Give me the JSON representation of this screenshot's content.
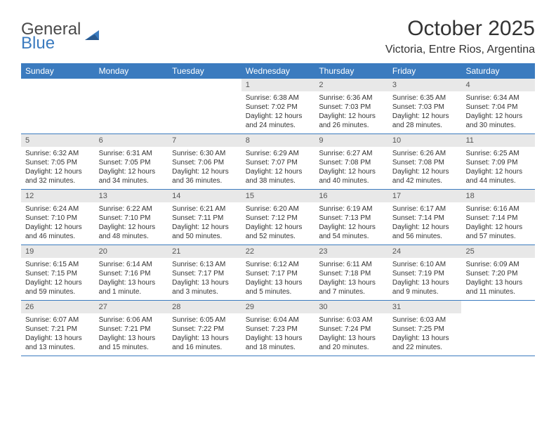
{
  "colors": {
    "header_bg": "#3b7bbf",
    "header_text": "#ffffff",
    "daynum_bg": "#e8e8e8",
    "daynum_text": "#555555",
    "body_text": "#333333",
    "border": "#3b7bbf",
    "logo_gray": "#4a4a4a",
    "logo_blue": "#3b7bbf",
    "page_bg": "#ffffff"
  },
  "logo": {
    "line1": "General",
    "line2": "Blue"
  },
  "title": "October 2025",
  "location": "Victoria, Entre Rios, Argentina",
  "day_headers": [
    "Sunday",
    "Monday",
    "Tuesday",
    "Wednesday",
    "Thursday",
    "Friday",
    "Saturday"
  ],
  "weeks": [
    [
      {
        "empty": true
      },
      {
        "empty": true
      },
      {
        "empty": true
      },
      {
        "num": "1",
        "sunrise": "Sunrise: 6:38 AM",
        "sunset": "Sunset: 7:02 PM",
        "daylight": "Daylight: 12 hours and 24 minutes."
      },
      {
        "num": "2",
        "sunrise": "Sunrise: 6:36 AM",
        "sunset": "Sunset: 7:03 PM",
        "daylight": "Daylight: 12 hours and 26 minutes."
      },
      {
        "num": "3",
        "sunrise": "Sunrise: 6:35 AM",
        "sunset": "Sunset: 7:03 PM",
        "daylight": "Daylight: 12 hours and 28 minutes."
      },
      {
        "num": "4",
        "sunrise": "Sunrise: 6:34 AM",
        "sunset": "Sunset: 7:04 PM",
        "daylight": "Daylight: 12 hours and 30 minutes."
      }
    ],
    [
      {
        "num": "5",
        "sunrise": "Sunrise: 6:32 AM",
        "sunset": "Sunset: 7:05 PM",
        "daylight": "Daylight: 12 hours and 32 minutes."
      },
      {
        "num": "6",
        "sunrise": "Sunrise: 6:31 AM",
        "sunset": "Sunset: 7:05 PM",
        "daylight": "Daylight: 12 hours and 34 minutes."
      },
      {
        "num": "7",
        "sunrise": "Sunrise: 6:30 AM",
        "sunset": "Sunset: 7:06 PM",
        "daylight": "Daylight: 12 hours and 36 minutes."
      },
      {
        "num": "8",
        "sunrise": "Sunrise: 6:29 AM",
        "sunset": "Sunset: 7:07 PM",
        "daylight": "Daylight: 12 hours and 38 minutes."
      },
      {
        "num": "9",
        "sunrise": "Sunrise: 6:27 AM",
        "sunset": "Sunset: 7:08 PM",
        "daylight": "Daylight: 12 hours and 40 minutes."
      },
      {
        "num": "10",
        "sunrise": "Sunrise: 6:26 AM",
        "sunset": "Sunset: 7:08 PM",
        "daylight": "Daylight: 12 hours and 42 minutes."
      },
      {
        "num": "11",
        "sunrise": "Sunrise: 6:25 AM",
        "sunset": "Sunset: 7:09 PM",
        "daylight": "Daylight: 12 hours and 44 minutes."
      }
    ],
    [
      {
        "num": "12",
        "sunrise": "Sunrise: 6:24 AM",
        "sunset": "Sunset: 7:10 PM",
        "daylight": "Daylight: 12 hours and 46 minutes."
      },
      {
        "num": "13",
        "sunrise": "Sunrise: 6:22 AM",
        "sunset": "Sunset: 7:10 PM",
        "daylight": "Daylight: 12 hours and 48 minutes."
      },
      {
        "num": "14",
        "sunrise": "Sunrise: 6:21 AM",
        "sunset": "Sunset: 7:11 PM",
        "daylight": "Daylight: 12 hours and 50 minutes."
      },
      {
        "num": "15",
        "sunrise": "Sunrise: 6:20 AM",
        "sunset": "Sunset: 7:12 PM",
        "daylight": "Daylight: 12 hours and 52 minutes."
      },
      {
        "num": "16",
        "sunrise": "Sunrise: 6:19 AM",
        "sunset": "Sunset: 7:13 PM",
        "daylight": "Daylight: 12 hours and 54 minutes."
      },
      {
        "num": "17",
        "sunrise": "Sunrise: 6:17 AM",
        "sunset": "Sunset: 7:14 PM",
        "daylight": "Daylight: 12 hours and 56 minutes."
      },
      {
        "num": "18",
        "sunrise": "Sunrise: 6:16 AM",
        "sunset": "Sunset: 7:14 PM",
        "daylight": "Daylight: 12 hours and 57 minutes."
      }
    ],
    [
      {
        "num": "19",
        "sunrise": "Sunrise: 6:15 AM",
        "sunset": "Sunset: 7:15 PM",
        "daylight": "Daylight: 12 hours and 59 minutes."
      },
      {
        "num": "20",
        "sunrise": "Sunrise: 6:14 AM",
        "sunset": "Sunset: 7:16 PM",
        "daylight": "Daylight: 13 hours and 1 minute."
      },
      {
        "num": "21",
        "sunrise": "Sunrise: 6:13 AM",
        "sunset": "Sunset: 7:17 PM",
        "daylight": "Daylight: 13 hours and 3 minutes."
      },
      {
        "num": "22",
        "sunrise": "Sunrise: 6:12 AM",
        "sunset": "Sunset: 7:17 PM",
        "daylight": "Daylight: 13 hours and 5 minutes."
      },
      {
        "num": "23",
        "sunrise": "Sunrise: 6:11 AM",
        "sunset": "Sunset: 7:18 PM",
        "daylight": "Daylight: 13 hours and 7 minutes."
      },
      {
        "num": "24",
        "sunrise": "Sunrise: 6:10 AM",
        "sunset": "Sunset: 7:19 PM",
        "daylight": "Daylight: 13 hours and 9 minutes."
      },
      {
        "num": "25",
        "sunrise": "Sunrise: 6:09 AM",
        "sunset": "Sunset: 7:20 PM",
        "daylight": "Daylight: 13 hours and 11 minutes."
      }
    ],
    [
      {
        "num": "26",
        "sunrise": "Sunrise: 6:07 AM",
        "sunset": "Sunset: 7:21 PM",
        "daylight": "Daylight: 13 hours and 13 minutes."
      },
      {
        "num": "27",
        "sunrise": "Sunrise: 6:06 AM",
        "sunset": "Sunset: 7:21 PM",
        "daylight": "Daylight: 13 hours and 15 minutes."
      },
      {
        "num": "28",
        "sunrise": "Sunrise: 6:05 AM",
        "sunset": "Sunset: 7:22 PM",
        "daylight": "Daylight: 13 hours and 16 minutes."
      },
      {
        "num": "29",
        "sunrise": "Sunrise: 6:04 AM",
        "sunset": "Sunset: 7:23 PM",
        "daylight": "Daylight: 13 hours and 18 minutes."
      },
      {
        "num": "30",
        "sunrise": "Sunrise: 6:03 AM",
        "sunset": "Sunset: 7:24 PM",
        "daylight": "Daylight: 13 hours and 20 minutes."
      },
      {
        "num": "31",
        "sunrise": "Sunrise: 6:03 AM",
        "sunset": "Sunset: 7:25 PM",
        "daylight": "Daylight: 13 hours and 22 minutes."
      },
      {
        "empty": true
      }
    ]
  ]
}
